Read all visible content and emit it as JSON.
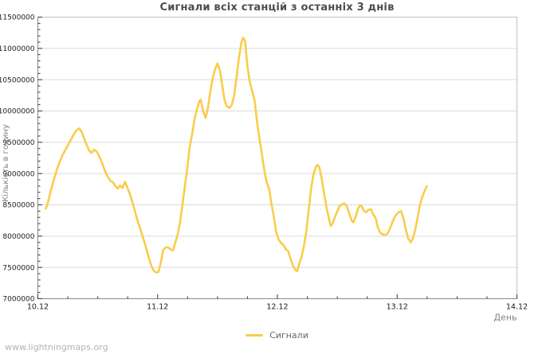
{
  "watermark": {
    "text": "www.lightningmaps.org"
  },
  "colors": {
    "background": "#ffffff",
    "series": "#F8CD4A",
    "grid": "#d9d9d9",
    "frame_dark": "#8a8a8a",
    "frame_light": "#c2c2c2",
    "tick": "#333333",
    "tick_label": "#1a1a1a",
    "title": "#4d4d4d",
    "axis_title": "#808080",
    "legend_text": "#666666",
    "watermark": "#b3b3b3"
  },
  "chart_data": {
    "type": "line",
    "title": "Сигнали всіх станцій з останніх 3 днів",
    "xlabel": "День",
    "ylabel": "Кількість в годину",
    "legend": {
      "position": "bottom-center",
      "label": "Сигнали"
    },
    "grid": "horizontal-only",
    "xlim": [
      0,
      4
    ],
    "ylim": [
      7000000,
      11500000
    ],
    "x_tick_values": [
      0,
      1,
      2,
      3,
      4
    ],
    "x_tick_labels": [
      "10.12",
      "11.12",
      "12.12",
      "13.12",
      "14.12"
    ],
    "x_minor_step": 0.25,
    "y_tick_values": [
      7000000,
      7500000,
      8000000,
      8500000,
      9000000,
      9500000,
      10000000,
      10500000,
      11000000,
      11500000
    ],
    "y_tick_labels": [
      "7000000",
      "7500000",
      "8000000",
      "8500000",
      "9000000",
      "9500000",
      "10000000",
      "10500000",
      "11000000",
      "11500000"
    ],
    "y_minor_step": 100000,
    "series": [
      {
        "name": "Сигнали",
        "color": "#F8CD4A",
        "points": [
          [
            0.067,
            8440000
          ],
          [
            0.087,
            8560000
          ],
          [
            0.107,
            8720000
          ],
          [
            0.127,
            8860000
          ],
          [
            0.147,
            8990000
          ],
          [
            0.167,
            9110000
          ],
          [
            0.187,
            9210000
          ],
          [
            0.207,
            9300000
          ],
          [
            0.227,
            9370000
          ],
          [
            0.247,
            9440000
          ],
          [
            0.267,
            9510000
          ],
          [
            0.287,
            9580000
          ],
          [
            0.307,
            9650000
          ],
          [
            0.327,
            9700000
          ],
          [
            0.347,
            9720000
          ],
          [
            0.367,
            9660000
          ],
          [
            0.387,
            9560000
          ],
          [
            0.407,
            9460000
          ],
          [
            0.427,
            9370000
          ],
          [
            0.447,
            9330000
          ],
          [
            0.467,
            9380000
          ],
          [
            0.487,
            9360000
          ],
          [
            0.507,
            9300000
          ],
          [
            0.527,
            9210000
          ],
          [
            0.547,
            9110000
          ],
          [
            0.567,
            9010000
          ],
          [
            0.587,
            8940000
          ],
          [
            0.607,
            8880000
          ],
          [
            0.627,
            8860000
          ],
          [
            0.647,
            8800000
          ],
          [
            0.667,
            8760000
          ],
          [
            0.687,
            8810000
          ],
          [
            0.707,
            8770000
          ],
          [
            0.727,
            8870000
          ],
          [
            0.747,
            8780000
          ],
          [
            0.767,
            8680000
          ],
          [
            0.787,
            8560000
          ],
          [
            0.807,
            8420000
          ],
          [
            0.827,
            8280000
          ],
          [
            0.847,
            8160000
          ],
          [
            0.867,
            8040000
          ],
          [
            0.887,
            7920000
          ],
          [
            0.907,
            7790000
          ],
          [
            0.927,
            7650000
          ],
          [
            0.947,
            7530000
          ],
          [
            0.967,
            7450000
          ],
          [
            0.987,
            7420000
          ],
          [
            1.007,
            7430000
          ],
          [
            1.027,
            7580000
          ],
          [
            1.047,
            7780000
          ],
          [
            1.067,
            7820000
          ],
          [
            1.087,
            7820000
          ],
          [
            1.107,
            7790000
          ],
          [
            1.127,
            7770000
          ],
          [
            1.147,
            7890000
          ],
          [
            1.167,
            8020000
          ],
          [
            1.187,
            8220000
          ],
          [
            1.207,
            8500000
          ],
          [
            1.227,
            8800000
          ],
          [
            1.247,
            9080000
          ],
          [
            1.267,
            9420000
          ],
          [
            1.287,
            9620000
          ],
          [
            1.307,
            9860000
          ],
          [
            1.327,
            10020000
          ],
          [
            1.347,
            10150000
          ],
          [
            1.36,
            10180000
          ],
          [
            1.38,
            10000000
          ],
          [
            1.4,
            9890000
          ],
          [
            1.42,
            10050000
          ],
          [
            1.44,
            10320000
          ],
          [
            1.46,
            10530000
          ],
          [
            1.48,
            10670000
          ],
          [
            1.5,
            10760000
          ],
          [
            1.52,
            10650000
          ],
          [
            1.54,
            10400000
          ],
          [
            1.56,
            10160000
          ],
          [
            1.58,
            10070000
          ],
          [
            1.6,
            10050000
          ],
          [
            1.62,
            10100000
          ],
          [
            1.64,
            10260000
          ],
          [
            1.66,
            10550000
          ],
          [
            1.68,
            10860000
          ],
          [
            1.7,
            11100000
          ],
          [
            1.715,
            11170000
          ],
          [
            1.73,
            11120000
          ],
          [
            1.75,
            10720000
          ],
          [
            1.77,
            10460000
          ],
          [
            1.79,
            10320000
          ],
          [
            1.81,
            10160000
          ],
          [
            1.83,
            9820000
          ],
          [
            1.85,
            9560000
          ],
          [
            1.87,
            9310000
          ],
          [
            1.89,
            9060000
          ],
          [
            1.91,
            8860000
          ],
          [
            1.93,
            8760000
          ],
          [
            1.95,
            8520000
          ],
          [
            1.97,
            8310000
          ],
          [
            1.99,
            8060000
          ],
          [
            2.01,
            7950000
          ],
          [
            2.03,
            7890000
          ],
          [
            2.05,
            7860000
          ],
          [
            2.07,
            7790000
          ],
          [
            2.09,
            7760000
          ],
          [
            2.11,
            7640000
          ],
          [
            2.13,
            7530000
          ],
          [
            2.15,
            7460000
          ],
          [
            2.165,
            7440000
          ],
          [
            2.185,
            7580000
          ],
          [
            2.2,
            7660000
          ],
          [
            2.22,
            7830000
          ],
          [
            2.24,
            8060000
          ],
          [
            2.26,
            8400000
          ],
          [
            2.28,
            8740000
          ],
          [
            2.3,
            8980000
          ],
          [
            2.32,
            9100000
          ],
          [
            2.335,
            9140000
          ],
          [
            2.35,
            9100000
          ],
          [
            2.37,
            8920000
          ],
          [
            2.39,
            8680000
          ],
          [
            2.41,
            8460000
          ],
          [
            2.43,
            8280000
          ],
          [
            2.445,
            8160000
          ],
          [
            2.46,
            8200000
          ],
          [
            2.48,
            8300000
          ],
          [
            2.5,
            8400000
          ],
          [
            2.52,
            8480000
          ],
          [
            2.54,
            8510000
          ],
          [
            2.56,
            8520000
          ],
          [
            2.58,
            8480000
          ],
          [
            2.6,
            8360000
          ],
          [
            2.62,
            8250000
          ],
          [
            2.635,
            8220000
          ],
          [
            2.655,
            8320000
          ],
          [
            2.675,
            8450000
          ],
          [
            2.69,
            8490000
          ],
          [
            2.705,
            8480000
          ],
          [
            2.72,
            8410000
          ],
          [
            2.74,
            8380000
          ],
          [
            2.76,
            8420000
          ],
          [
            2.78,
            8430000
          ],
          [
            2.8,
            8350000
          ],
          [
            2.82,
            8290000
          ],
          [
            2.84,
            8130000
          ],
          [
            2.86,
            8050000
          ],
          [
            2.88,
            8030000
          ],
          [
            2.9,
            8020000
          ],
          [
            2.92,
            8040000
          ],
          [
            2.94,
            8120000
          ],
          [
            2.96,
            8220000
          ],
          [
            2.98,
            8310000
          ],
          [
            3.0,
            8360000
          ],
          [
            3.02,
            8390000
          ],
          [
            3.033,
            8400000
          ],
          [
            3.053,
            8280000
          ],
          [
            3.073,
            8100000
          ],
          [
            3.093,
            7960000
          ],
          [
            3.113,
            7900000
          ],
          [
            3.133,
            7970000
          ],
          [
            3.153,
            8120000
          ],
          [
            3.173,
            8320000
          ],
          [
            3.193,
            8520000
          ],
          [
            3.213,
            8650000
          ],
          [
            3.233,
            8740000
          ],
          [
            3.247,
            8800000
          ]
        ]
      }
    ]
  }
}
